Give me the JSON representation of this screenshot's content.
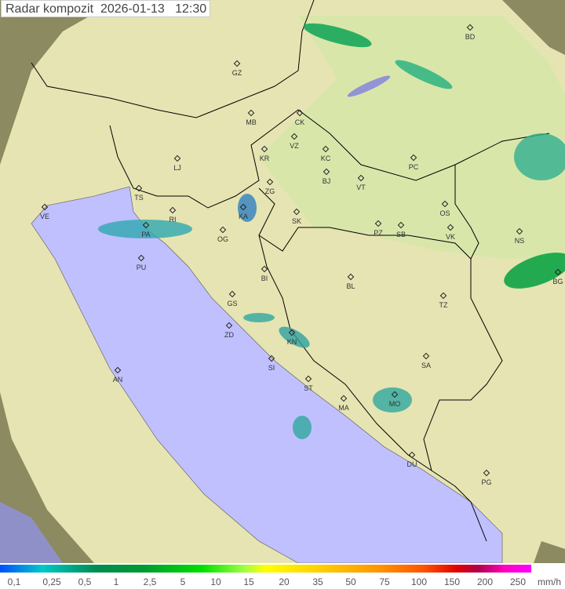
{
  "title": {
    "label": "Radar kompozit",
    "date": "2026-01-13",
    "time": "12:30"
  },
  "colors": {
    "sea": "#c0c0ff",
    "land_in_range": "#e8e6b0",
    "land_out_of_range": "#8c8a60",
    "border": "#000000",
    "rain_light": "#40b0a0",
    "rain_medium": "#00a040"
  },
  "cities": [
    {
      "code": "GZ"
    },
    {
      "code": "BD"
    },
    {
      "code": "MB"
    },
    {
      "code": "CK"
    },
    {
      "code": "VZ"
    },
    {
      "code": "KR"
    },
    {
      "code": "KC"
    },
    {
      "code": "PC"
    },
    {
      "code": "LJ"
    },
    {
      "code": "ZG"
    },
    {
      "code": "BJ"
    },
    {
      "code": "VT"
    },
    {
      "code": "TS"
    },
    {
      "code": "VE"
    },
    {
      "code": "KA"
    },
    {
      "code": "SK"
    },
    {
      "code": "RI"
    },
    {
      "code": "OS"
    },
    {
      "code": "OG"
    },
    {
      "code": "PZ"
    },
    {
      "code": "SB"
    },
    {
      "code": "VK"
    },
    {
      "code": "NS"
    },
    {
      "code": "PA"
    },
    {
      "code": "PU"
    },
    {
      "code": "BI"
    },
    {
      "code": "BL"
    },
    {
      "code": "BG"
    },
    {
      "code": "GS"
    },
    {
      "code": "TZ"
    },
    {
      "code": "ZD"
    },
    {
      "code": "KN"
    },
    {
      "code": "SA"
    },
    {
      "code": "SI"
    },
    {
      "code": "AN"
    },
    {
      "code": "ST"
    },
    {
      "code": "MA"
    },
    {
      "code": "MO"
    },
    {
      "code": "DU"
    },
    {
      "code": "PG"
    }
  ],
  "legend": {
    "labels": [
      "0,1",
      "0,25",
      "0,5",
      "1",
      "2,5",
      "5",
      "10",
      "15",
      "20",
      "35",
      "50",
      "75",
      "100",
      "150",
      "200",
      "250"
    ],
    "unit": "mm/h"
  }
}
